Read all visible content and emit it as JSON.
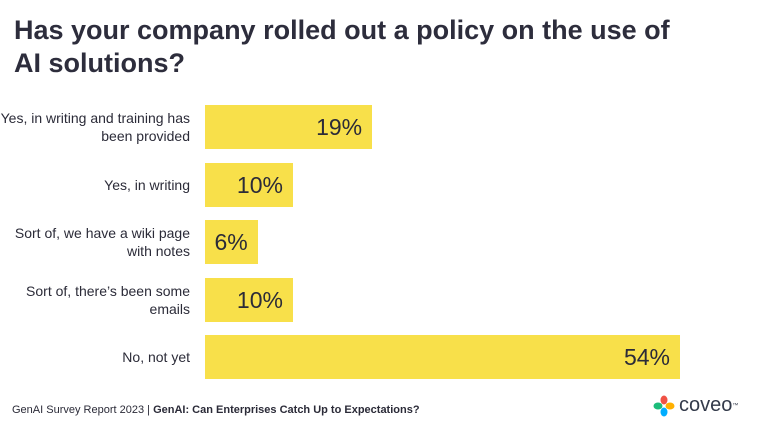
{
  "chart_data": {
    "type": "bar",
    "orientation": "horizontal",
    "title": "Has your company rolled out a policy on the use of AI solutions?",
    "categories": [
      "Yes, in writing and training has been provided",
      "Yes, in writing",
      "Sort of, we have a wiki page with notes",
      "Sort of, there’s been some emails",
      "No, not yet"
    ],
    "values": [
      19,
      10,
      6,
      10,
      54
    ],
    "value_labels": [
      "19%",
      "10%",
      "6%",
      "10%",
      "54%"
    ],
    "color": "#f8e04a"
  },
  "footer": {
    "report": "GenAI Survey Report 2023",
    "separator": "|",
    "subtitle": "GenAI: Can Enterprises Catch Up to Expectations?"
  },
  "logo": {
    "name": "coveo",
    "mark": "™"
  }
}
